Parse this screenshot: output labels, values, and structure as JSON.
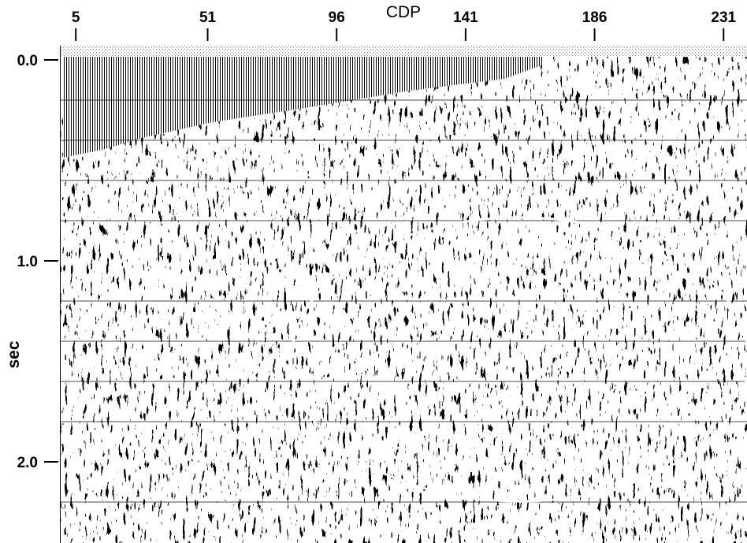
{
  "chart_data": {
    "type": "seismic",
    "xlabel": "CDP",
    "ylabel": "sec",
    "xlim": [
      0,
      240
    ],
    "xticks": [
      5,
      51,
      96,
      141,
      186,
      231
    ],
    "ylim": [
      0,
      2.4
    ],
    "yticks": [
      {
        "value": 0,
        "label": "0.0"
      },
      {
        "value": 1,
        "label": "1.0"
      },
      {
        "value": 2,
        "label": "2.0"
      }
    ]
  }
}
